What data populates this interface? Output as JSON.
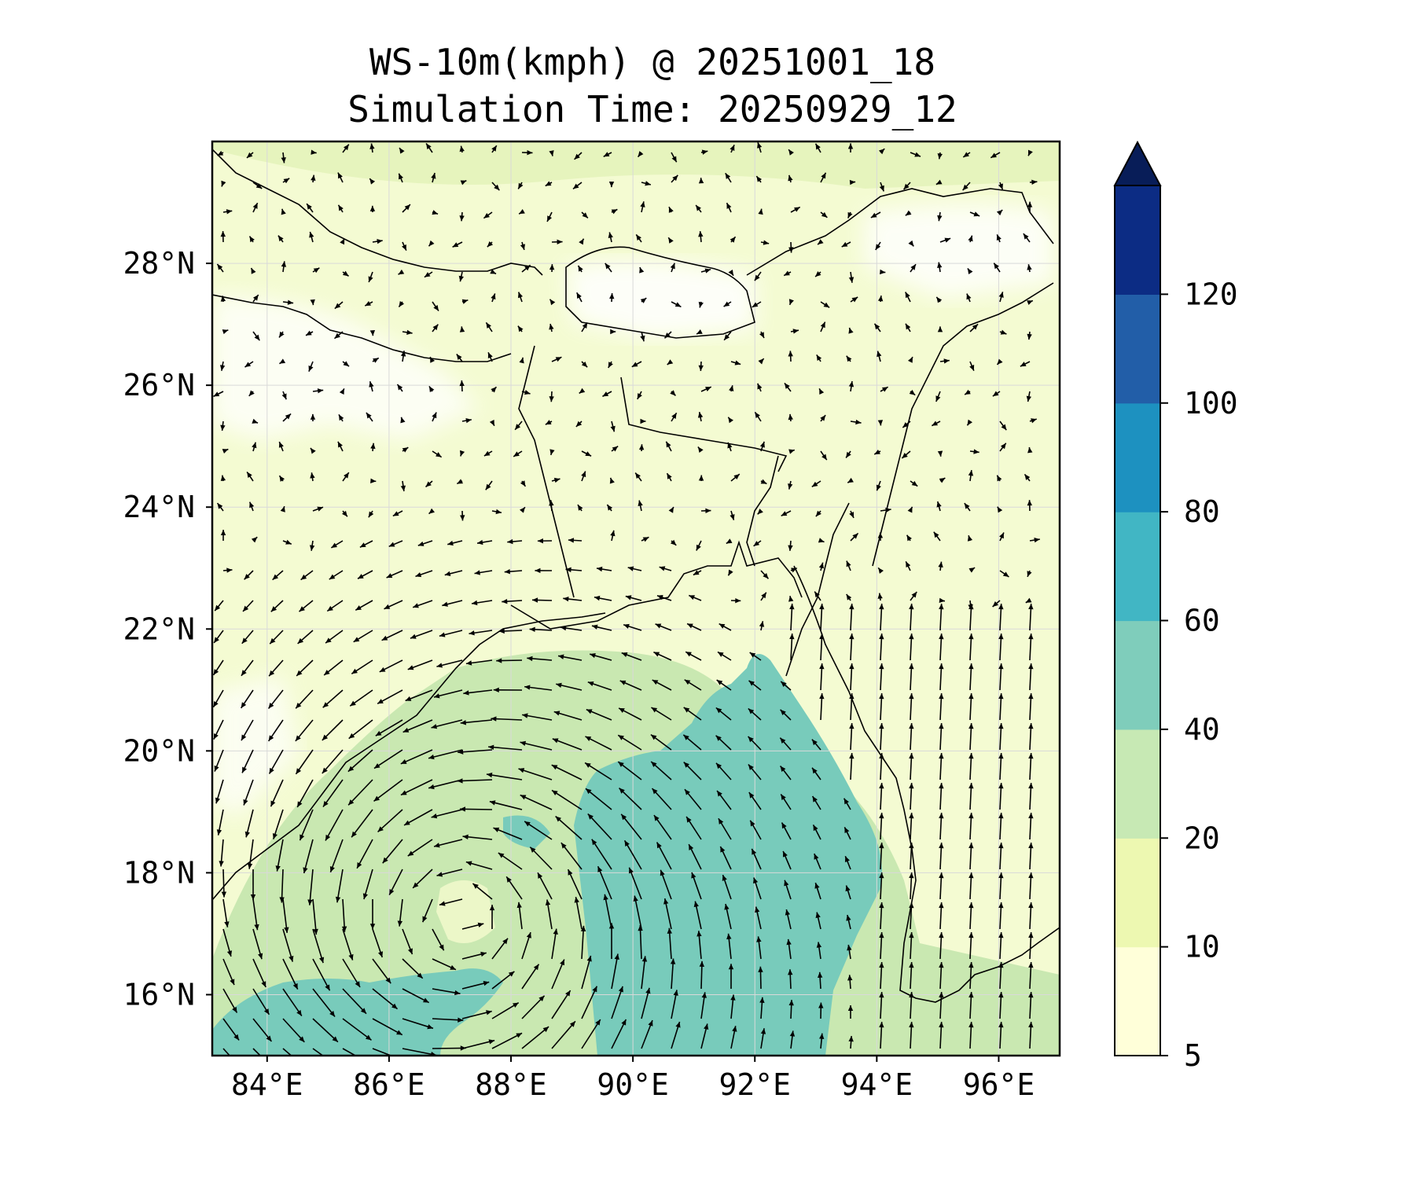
{
  "title": {
    "line1": "WS-10m(kmph) @ 20251001_18",
    "line2": "Simulation Time: 20250929_12"
  },
  "map": {
    "lon_range": [
      83.1,
      97.0
    ],
    "lat_range": [
      15.0,
      30.0
    ],
    "lon_ticks": [
      {
        "value": 84,
        "label": "84°E"
      },
      {
        "value": 86,
        "label": "86°E"
      },
      {
        "value": 88,
        "label": "88°E"
      },
      {
        "value": 90,
        "label": "90°E"
      },
      {
        "value": 92,
        "label": "92°E"
      },
      {
        "value": 94,
        "label": "94°E"
      },
      {
        "value": 96,
        "label": "96°E"
      }
    ],
    "lat_ticks": [
      {
        "value": 16,
        "label": "16°N"
      },
      {
        "value": 18,
        "label": "18°N"
      },
      {
        "value": 20,
        "label": "20°N"
      },
      {
        "value": 22,
        "label": "22°N"
      },
      {
        "value": 24,
        "label": "24°N"
      },
      {
        "value": 26,
        "label": "26°N"
      },
      {
        "value": 28,
        "label": "28°N"
      }
    ],
    "cyclone_center": {
      "lon": 87.2,
      "lat": 17.2
    }
  },
  "colorbar": {
    "levels": [
      "5",
      "10",
      "20",
      "40",
      "60",
      "80",
      "100",
      "120"
    ],
    "colors": [
      "#ffffd9",
      "#edf8b1",
      "#c7e9b4",
      "#7fcdbb",
      "#41b6c4",
      "#1d91c0",
      "#225ea8",
      "#0c2c84"
    ],
    "extend_color": "#081d58",
    "extend": "max"
  }
}
